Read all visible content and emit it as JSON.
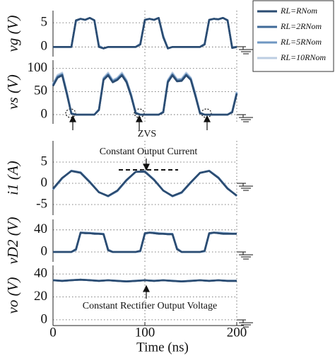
{
  "chart_data": [
    {
      "type": "line",
      "ylabel": "vg (V)",
      "xlim": [
        0,
        200
      ],
      "ylim": [
        -2,
        7.5
      ],
      "yticks": [
        0,
        5
      ],
      "x": [
        0,
        5,
        10,
        15,
        20,
        25,
        30,
        35,
        40,
        45,
        50,
        55,
        60,
        65,
        70,
        75,
        80,
        85,
        90,
        95,
        100,
        105,
        110,
        115,
        120,
        125,
        130,
        135,
        140,
        145,
        150,
        155,
        160,
        165,
        170,
        175,
        180,
        185,
        190,
        195,
        200
      ],
      "series": [
        {
          "name": "RL=RNom",
          "color": "#2b4c72",
          "values": [
            0,
            0,
            0,
            0,
            0,
            5.5,
            5.8,
            5.6,
            6,
            5.5,
            0,
            -0.3,
            0,
            0,
            0,
            0,
            0,
            0,
            0,
            0.5,
            5.6,
            5.8,
            5.6,
            6,
            2,
            -0.3,
            0,
            0,
            0,
            0,
            0,
            0,
            0,
            0.5,
            5.6,
            5.8,
            5.7,
            6,
            5.5,
            -0.2,
            0
          ]
        },
        {
          "name": "RL=2RNom",
          "color": "#3f6a98",
          "values": [
            0,
            0,
            0,
            0,
            0,
            5.5,
            5.8,
            5.6,
            6,
            5.5,
            0,
            -0.3,
            0,
            0,
            0,
            0,
            0,
            0,
            0,
            0.5,
            5.6,
            5.8,
            5.6,
            6,
            2,
            -0.3,
            0,
            0,
            0,
            0,
            0,
            0,
            0,
            0.5,
            5.6,
            5.8,
            5.7,
            6,
            5.5,
            -0.2,
            0
          ]
        },
        {
          "name": "RL=5RNom",
          "color": "#6f97c2",
          "values": [
            0,
            0,
            0,
            0,
            0,
            5.4,
            5.8,
            5.6,
            6,
            5.5,
            0.2,
            -0.3,
            0,
            0,
            0,
            0,
            0,
            0,
            0,
            0.6,
            5.6,
            5.8,
            5.6,
            6,
            2.2,
            -0.3,
            0,
            0,
            0,
            0,
            0,
            0,
            0,
            0.6,
            5.6,
            5.8,
            5.7,
            6,
            5.5,
            -0.1,
            0
          ]
        },
        {
          "name": "RL=10RNom",
          "color": "#bccde2",
          "values": [
            0,
            0,
            0,
            0,
            0,
            5.3,
            5.8,
            5.6,
            6,
            5.5,
            0.3,
            -0.3,
            0,
            0,
            0,
            0,
            0,
            0,
            0,
            0.7,
            5.5,
            5.8,
            5.6,
            6,
            2.4,
            -0.3,
            0,
            0,
            0,
            0,
            0,
            0,
            0,
            0.7,
            5.5,
            5.8,
            5.7,
            6,
            5.5,
            0,
            0
          ]
        }
      ]
    },
    {
      "type": "line",
      "ylabel": "vs (V)",
      "xlim": [
        0,
        200
      ],
      "ylim": [
        -20,
        118
      ],
      "yticks": [
        0,
        50,
        100
      ],
      "annotations": [
        "ZVS"
      ],
      "x": [
        0,
        5,
        10,
        15,
        20,
        25,
        30,
        35,
        40,
        45,
        50,
        55,
        60,
        65,
        70,
        75,
        80,
        85,
        90,
        95,
        100,
        105,
        110,
        115,
        120,
        125,
        130,
        135,
        140,
        145,
        150,
        155,
        160,
        165,
        170,
        175,
        180,
        185,
        190,
        195,
        200
      ],
      "series": [
        {
          "values": [
            62,
            80,
            85,
            45,
            2,
            0,
            0,
            0,
            0,
            0,
            10,
            75,
            85,
            70,
            75,
            85,
            70,
            40,
            3,
            0,
            0,
            0,
            0,
            0,
            5,
            70,
            85,
            72,
            73,
            85,
            75,
            40,
            3,
            0,
            0,
            0,
            0,
            0,
            0,
            5,
            45
          ]
        },
        {
          "values": [
            63,
            81,
            86,
            46,
            2,
            0,
            0,
            0,
            0,
            0,
            10,
            76,
            86,
            71,
            76,
            86,
            71,
            41,
            3,
            0,
            0,
            0,
            0,
            0,
            5,
            71,
            86,
            73,
            74,
            86,
            76,
            41,
            3,
            0,
            0,
            0,
            0,
            0,
            0,
            5,
            46
          ]
        },
        {
          "values": [
            65,
            83,
            88,
            48,
            3,
            0,
            0,
            0,
            0,
            0,
            11,
            78,
            88,
            73,
            78,
            88,
            73,
            43,
            4,
            0,
            0,
            0,
            0,
            0,
            6,
            73,
            88,
            75,
            76,
            88,
            78,
            43,
            4,
            0,
            0,
            0,
            0,
            0,
            0,
            6,
            48
          ]
        },
        {
          "values": [
            67,
            86,
            91,
            50,
            4,
            0,
            0,
            0,
            0,
            0,
            12,
            80,
            91,
            75,
            80,
            91,
            75,
            45,
            5,
            0,
            0,
            0,
            0,
            0,
            7,
            75,
            91,
            77,
            78,
            91,
            80,
            45,
            5,
            0,
            0,
            0,
            0,
            0,
            0,
            7,
            50
          ]
        }
      ]
    },
    {
      "type": "line",
      "ylabel": "i1 (A)",
      "xlim": [
        0,
        200
      ],
      "ylim": [
        -7.5,
        10
      ],
      "yticks": [
        -5,
        0,
        5
      ],
      "annotations": [
        "Constant Output Current"
      ],
      "x": [
        0,
        10,
        20,
        30,
        40,
        50,
        60,
        70,
        80,
        90,
        100,
        110,
        120,
        130,
        140,
        150,
        160,
        170,
        180,
        190,
        200
      ],
      "series": [
        {
          "values": [
            -1.27,
            1.27,
            2.9,
            2.46,
            0.26,
            -2.12,
            -2.99,
            -1.72,
            0.78,
            2.72,
            2.72,
            0.78,
            -1.72,
            -2.99,
            -2.12,
            0.26,
            2.46,
            2.9,
            1.27,
            -1.27,
            -2.9
          ]
        },
        {
          "values": [
            -1.3,
            1.25,
            2.9,
            2.48,
            0.3,
            -2.1,
            -3,
            -1.75,
            0.75,
            2.7,
            2.74,
            0.8,
            -1.7,
            -3,
            -2.15,
            0.22,
            2.45,
            2.92,
            1.3,
            -1.25,
            -2.9
          ]
        },
        {
          "values": [
            -1.4,
            1.2,
            2.95,
            2.55,
            0.35,
            -2.1,
            -3.05,
            -1.8,
            0.7,
            2.7,
            2.8,
            0.85,
            -1.7,
            -3.05,
            -2.2,
            0.2,
            2.45,
            2.95,
            1.35,
            -1.2,
            -2.95
          ]
        },
        {
          "values": [
            -1.5,
            1.1,
            3,
            2.65,
            0.45,
            -2.05,
            -3.1,
            -1.9,
            0.6,
            2.7,
            2.9,
            0.95,
            -1.65,
            -3.1,
            -2.3,
            0.1,
            2.45,
            3,
            1.45,
            -1.1,
            -3
          ]
        }
      ]
    },
    {
      "type": "line",
      "ylabel": "vD2 (V)",
      "xlim": [
        0,
        200
      ],
      "ylim": [
        -18,
        59
      ],
      "yticks": [
        0,
        40
      ],
      "x": [
        0,
        5,
        10,
        15,
        20,
        25,
        30,
        35,
        40,
        45,
        50,
        55,
        60,
        65,
        70,
        75,
        80,
        85,
        90,
        95,
        100,
        105,
        110,
        115,
        120,
        125,
        130,
        135,
        140,
        145,
        150,
        155,
        160,
        165,
        170,
        175,
        180,
        185,
        190,
        195,
        200
      ],
      "series": [
        {
          "values": [
            0,
            0,
            0,
            0,
            0,
            5,
            35,
            34,
            34,
            33,
            33,
            32,
            3,
            0,
            0,
            0,
            0,
            0,
            0,
            2,
            34,
            35,
            34,
            33,
            33,
            32,
            32,
            5,
            0,
            0,
            0,
            0,
            0,
            2,
            34,
            35,
            34,
            33,
            33,
            33,
            33
          ]
        },
        {
          "values": [
            0,
            0,
            0,
            0,
            0,
            5,
            35,
            34,
            34,
            33,
            33,
            32,
            3,
            0,
            0,
            0,
            0,
            0,
            0,
            2,
            34,
            35,
            34,
            33,
            33,
            32,
            32,
            5,
            0,
            0,
            0,
            0,
            0,
            2,
            34,
            35,
            34,
            33,
            33,
            33,
            33
          ]
        },
        {
          "values": [
            0,
            0,
            0,
            0,
            0,
            4,
            35,
            35,
            34,
            34,
            33,
            33,
            4,
            0,
            0,
            0,
            0,
            0,
            0,
            1,
            33,
            35,
            35,
            34,
            33,
            33,
            33,
            6,
            0,
            0,
            0,
            0,
            0,
            1,
            33,
            35,
            35,
            34,
            34,
            33,
            33
          ]
        },
        {
          "values": [
            0,
            0,
            0,
            0,
            0,
            3,
            34,
            35,
            35,
            34,
            34,
            33,
            5,
            0,
            0,
            0,
            0,
            0,
            0,
            1,
            32,
            35,
            35,
            34,
            34,
            33,
            33,
            7,
            0,
            0,
            0,
            0,
            0,
            1,
            32,
            35,
            35,
            35,
            34,
            34,
            34
          ]
        }
      ]
    },
    {
      "type": "line",
      "ylabel": "vo (V)",
      "xlabel": "Time (ns)",
      "xlim": [
        0,
        200
      ],
      "ylim": [
        -5,
        47.5
      ],
      "yticks": [
        0,
        20,
        40
      ],
      "xticks": [
        0,
        100,
        200
      ],
      "annotations": [
        "Constant Rectifier Output Voltage"
      ],
      "x": [
        0,
        10,
        20,
        30,
        40,
        50,
        60,
        70,
        80,
        90,
        100,
        110,
        120,
        130,
        140,
        150,
        160,
        170,
        180,
        190,
        200
      ],
      "series": [
        {
          "values": [
            34.5,
            34,
            34.5,
            35,
            34.5,
            34,
            34.5,
            34,
            33.5,
            34,
            34.5,
            34,
            34.5,
            34,
            33.5,
            34,
            34.5,
            34,
            34.5,
            34,
            34
          ]
        },
        {
          "values": [
            34.5,
            34,
            34.5,
            35,
            34.5,
            34,
            34.5,
            34,
            33.5,
            34,
            34.5,
            34,
            34.5,
            34,
            33.5,
            34,
            34.5,
            34,
            34.5,
            34,
            34
          ]
        },
        {
          "values": [
            34.6,
            34.1,
            34.6,
            35,
            34.6,
            34.1,
            34.5,
            34.1,
            33.6,
            34.1,
            34.5,
            34.1,
            34.5,
            34.1,
            33.6,
            34.1,
            34.5,
            34.1,
            34.5,
            34.1,
            34.1
          ]
        },
        {
          "values": [
            34.8,
            34.2,
            34.8,
            35.1,
            34.8,
            34.2,
            34.6,
            34.2,
            33.8,
            34.2,
            34.6,
            34.2,
            34.6,
            34.2,
            33.8,
            34.2,
            34.6,
            34.2,
            34.6,
            34.2,
            34.2
          ]
        }
      ]
    }
  ]
}
